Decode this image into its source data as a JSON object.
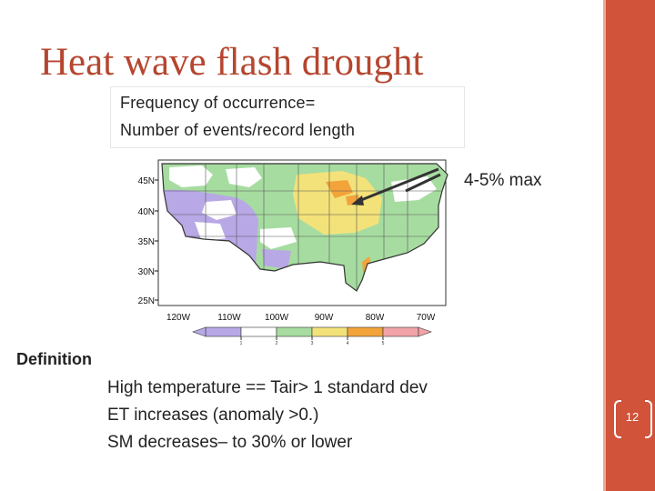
{
  "title": "Heat wave flash drought",
  "frequency": {
    "line1": "Frequency of occurrence=",
    "line2": "Number of events/record length"
  },
  "map": {
    "lat_labels": [
      "45N",
      "40N",
      "35N",
      "30N",
      "25N"
    ],
    "lon_labels": [
      "120W",
      "110W",
      "100W",
      "90W",
      "80W",
      "70W"
    ],
    "colorbar_colors": [
      "#b8a8e6",
      "#ffffff",
      "#a6dca0",
      "#f3e27a",
      "#f2a43b",
      "#f1a3a8"
    ],
    "colorbar_ticks": [
      "1",
      "2",
      "3",
      "4",
      "5"
    ]
  },
  "max_label": "4-5% max",
  "definition": {
    "heading": "Definition",
    "lines": [
      "High temperature ==  Tair> 1 standard dev",
      "ET increases (anomaly >0.)",
      "SM decreases– to 30% or lower"
    ]
  },
  "page_number": "12"
}
